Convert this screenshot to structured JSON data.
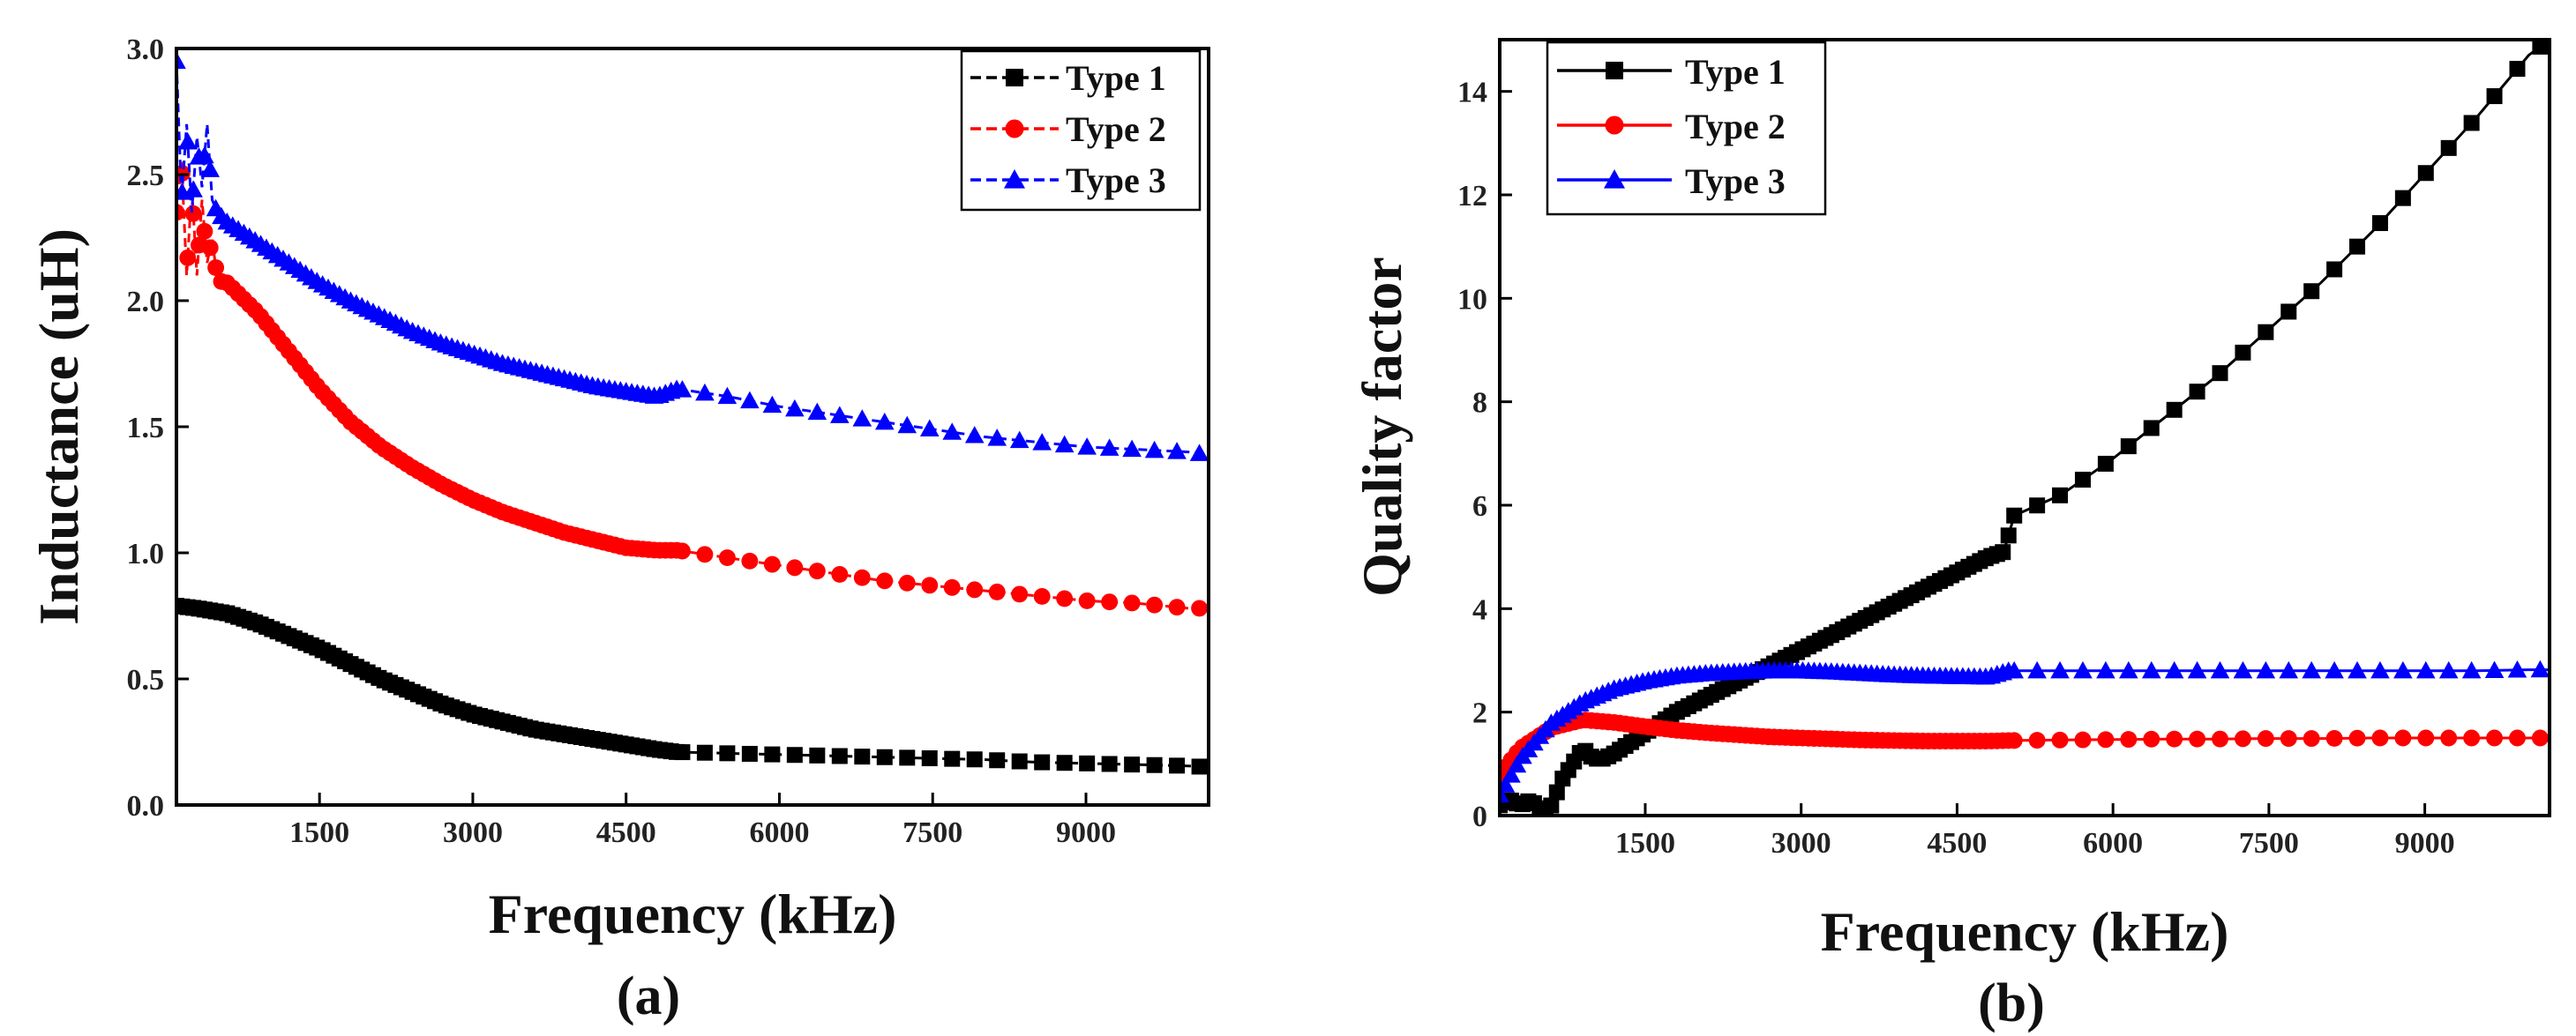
{
  "chart_data": [
    {
      "type": "line",
      "caption": "(a)",
      "xlabel": "Frequency (kHz)",
      "ylabel": "Inductance (uH)",
      "xlim": [
        100,
        10200
      ],
      "ylim": [
        0.0,
        3.0
      ],
      "xticks": [
        "1500",
        "3000",
        "4500",
        "6000",
        "7500",
        "9000"
      ],
      "yticks": [
        "0.0",
        "0.5",
        "1.0",
        "1.5",
        "2.0",
        "2.5",
        "3.0"
      ],
      "legend_position": "top-right",
      "series": [
        {
          "name": "Type 1",
          "color": "#000000",
          "marker": "square",
          "x": [
            100,
            300,
            600,
            900,
            1200,
            1500,
            1800,
            2100,
            2400,
            2700,
            3000,
            3300,
            3600,
            3900,
            4200,
            4500,
            4800,
            5000,
            5500,
            6000,
            6500,
            7000,
            7500,
            8000,
            8500,
            9000,
            9500,
            10000,
            10200
          ],
          "y": [
            0.79,
            0.78,
            0.76,
            0.72,
            0.67,
            0.62,
            0.56,
            0.5,
            0.45,
            0.4,
            0.36,
            0.33,
            0.3,
            0.28,
            0.26,
            0.24,
            0.22,
            0.21,
            0.205,
            0.2,
            0.195,
            0.19,
            0.185,
            0.18,
            0.17,
            0.165,
            0.16,
            0.155,
            0.15
          ]
        },
        {
          "name": "Type 2",
          "color": "#ff0000",
          "marker": "circle",
          "x": [
            100,
            150,
            200,
            250,
            300,
            350,
            400,
            450,
            500,
            600,
            900,
            1200,
            1500,
            1800,
            2100,
            2400,
            2700,
            3000,
            3300,
            3600,
            3900,
            4200,
            4500,
            4800,
            5000,
            5500,
            6000,
            6500,
            7000,
            7500,
            8000,
            8500,
            9000,
            9500,
            10000,
            10200
          ],
          "y": [
            2.35,
            2.55,
            2.1,
            2.45,
            2.1,
            2.4,
            2.15,
            2.25,
            2.08,
            2.07,
            1.95,
            1.8,
            1.65,
            1.52,
            1.42,
            1.34,
            1.27,
            1.21,
            1.16,
            1.12,
            1.08,
            1.05,
            1.02,
            1.01,
            1.01,
            0.98,
            0.95,
            0.92,
            0.89,
            0.87,
            0.85,
            0.83,
            0.81,
            0.8,
            0.78,
            0.78
          ]
        },
        {
          "name": "Type 3",
          "color": "#0000ff",
          "marker": "triangle",
          "x": [
            100,
            150,
            200,
            250,
            300,
            350,
            400,
            450,
            500,
            600,
            900,
            1200,
            1500,
            1800,
            2100,
            2400,
            2700,
            3000,
            3300,
            3600,
            3900,
            4200,
            4500,
            4800,
            5000,
            5500,
            6000,
            6500,
            7000,
            7500,
            8000,
            8500,
            9000,
            9500,
            10000,
            10200
          ],
          "y": [
            2.95,
            2.4,
            2.7,
            2.35,
            2.65,
            2.45,
            2.7,
            2.4,
            2.35,
            2.31,
            2.23,
            2.15,
            2.07,
            2.0,
            1.94,
            1.88,
            1.83,
            1.79,
            1.75,
            1.72,
            1.69,
            1.66,
            1.64,
            1.62,
            1.65,
            1.62,
            1.58,
            1.55,
            1.52,
            1.49,
            1.46,
            1.44,
            1.42,
            1.41,
            1.4,
            1.39
          ]
        }
      ]
    },
    {
      "type": "line",
      "caption": "(b)",
      "xlabel": "Frequency (kHz)",
      "ylabel": "Quality factor",
      "xlim": [
        100,
        10200
      ],
      "ylim": [
        0,
        15
      ],
      "xticks": [
        "1500",
        "3000",
        "4500",
        "6000",
        "7500",
        "9000"
      ],
      "yticks": [
        "0",
        "2",
        "4",
        "6",
        "8",
        "10",
        "12",
        "14"
      ],
      "legend_position": "top-left",
      "series": [
        {
          "name": "Type 1",
          "color": "#000000",
          "marker": "square",
          "x": [
            100,
            200,
            300,
            400,
            500,
            600,
            700,
            800,
            900,
            1000,
            1100,
            1200,
            1500,
            1800,
            2100,
            2400,
            2700,
            3000,
            3300,
            3600,
            3900,
            4200,
            4500,
            4800,
            4950,
            5050,
            5500,
            6000,
            6500,
            7000,
            7500,
            8000,
            8500,
            9000,
            9500,
            10000,
            10200
          ],
          "y": [
            0.2,
            0.3,
            0.2,
            0.3,
            0.1,
            0.2,
            0.7,
            1.0,
            1.3,
            1.1,
            1.1,
            1.2,
            1.6,
            2.0,
            2.3,
            2.6,
            2.9,
            3.2,
            3.5,
            3.8,
            4.1,
            4.4,
            4.7,
            5.0,
            5.1,
            5.8,
            6.2,
            6.9,
            7.7,
            8.5,
            9.4,
            10.3,
            11.3,
            12.4,
            13.5,
            14.7,
            15.0
          ]
        },
        {
          "name": "Type 2",
          "color": "#ff0000",
          "marker": "circle",
          "x": [
            100,
            300,
            600,
            900,
            1200,
            1500,
            1800,
            2100,
            2400,
            2700,
            3000,
            3300,
            3600,
            3900,
            4200,
            4500,
            4800,
            5000,
            5500,
            6000,
            6500,
            7000,
            7500,
            8000,
            8500,
            9000,
            9500,
            10000,
            10200
          ],
          "y": [
            0.8,
            1.3,
            1.7,
            1.85,
            1.8,
            1.72,
            1.65,
            1.6,
            1.56,
            1.52,
            1.5,
            1.48,
            1.46,
            1.45,
            1.44,
            1.44,
            1.44,
            1.45,
            1.46,
            1.47,
            1.48,
            1.48,
            1.49,
            1.49,
            1.5,
            1.5,
            1.5,
            1.5,
            1.5
          ]
        },
        {
          "name": "Type 3",
          "color": "#0000ff",
          "marker": "triangle",
          "x": [
            100,
            300,
            600,
            900,
            1200,
            1500,
            1800,
            2100,
            2400,
            2700,
            3000,
            3300,
            3600,
            3900,
            4200,
            4500,
            4800,
            5000,
            5500,
            6000,
            6500,
            7000,
            7500,
            8000,
            8500,
            9000,
            9500,
            10000,
            10200
          ],
          "y": [
            0.4,
            1.1,
            1.8,
            2.2,
            2.45,
            2.6,
            2.7,
            2.75,
            2.78,
            2.8,
            2.8,
            2.78,
            2.75,
            2.72,
            2.7,
            2.69,
            2.68,
            2.8,
            2.8,
            2.8,
            2.8,
            2.8,
            2.8,
            2.8,
            2.8,
            2.8,
            2.8,
            2.82,
            2.82
          ]
        }
      ]
    }
  ]
}
